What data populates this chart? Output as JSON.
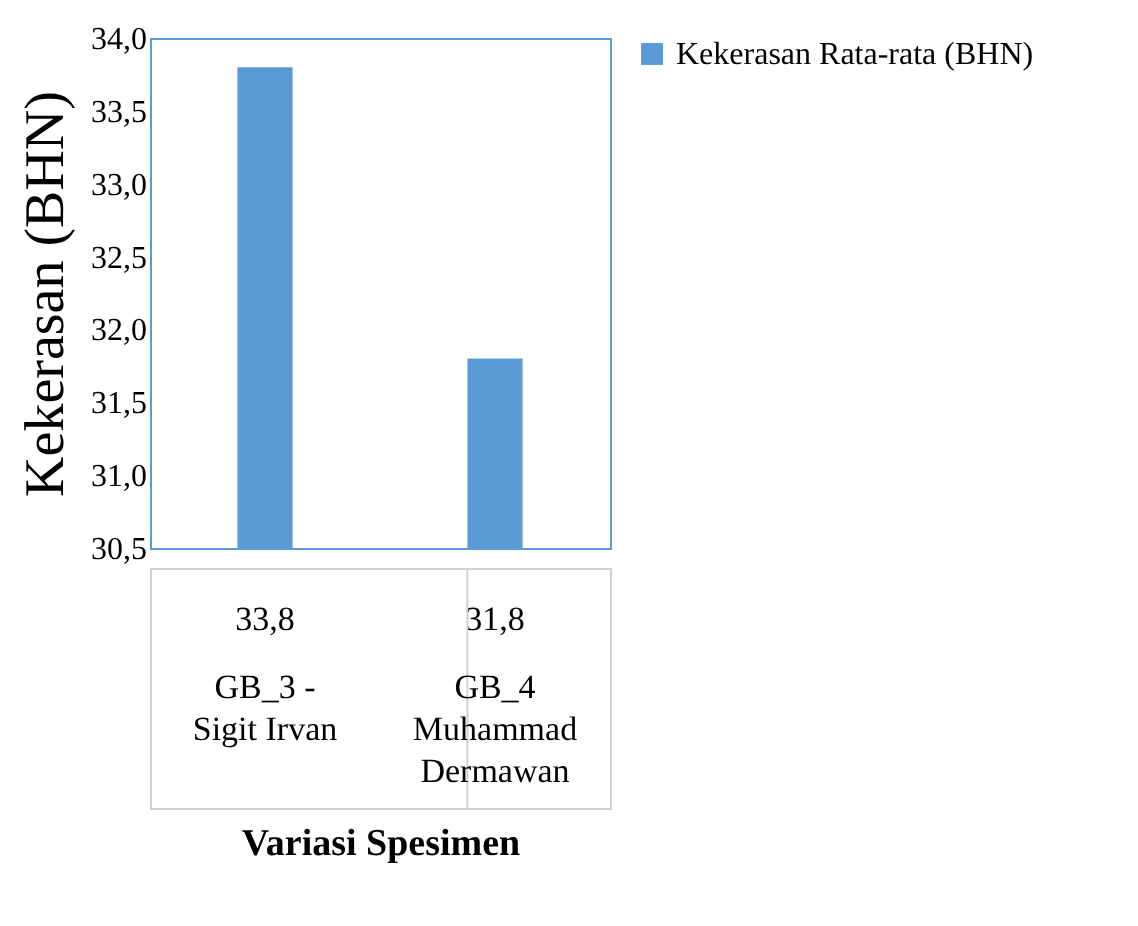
{
  "chart_data": {
    "type": "bar",
    "xlabel": "Variasi Spesimen",
    "ylabel": "Kekerasan (BHN)",
    "categories": [
      "GB_3 - Sigit Irvan",
      "GB_4 Muhammad Dermawan"
    ],
    "series": [
      {
        "name": "Kekerasan Rata-rata (BHN)",
        "color": "#5b9bd5",
        "values": [
          33.8,
          31.8
        ],
        "value_labels": [
          "33,8",
          "31,8"
        ]
      }
    ],
    "ylim": [
      30.5,
      34
    ],
    "yticks": [
      {
        "value": 30.5,
        "label": "30,5"
      },
      {
        "value": 31,
        "label": "31,0"
      },
      {
        "value": 31.5,
        "label": "31,5"
      },
      {
        "value": 32,
        "label": "32,0"
      },
      {
        "value": 32.5,
        "label": "32,5"
      },
      {
        "value": 33,
        "label": "33,0"
      },
      {
        "value": 33.5,
        "label": "33,5"
      },
      {
        "value": 34,
        "label": "34,0"
      }
    ],
    "legend": "right",
    "grid": false
  }
}
